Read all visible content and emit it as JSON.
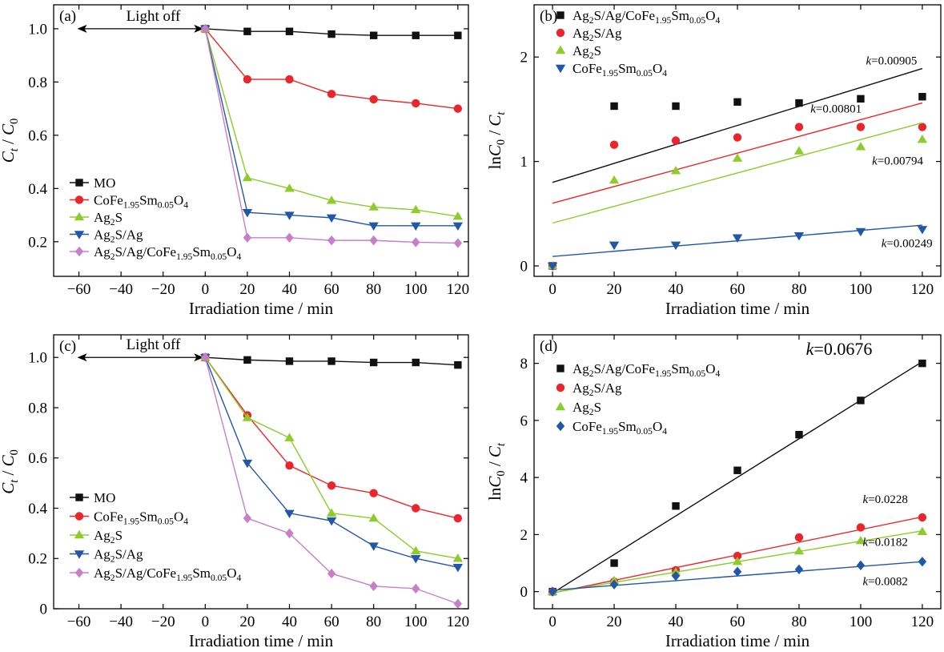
{
  "colors": {
    "black": "#111111",
    "red": "#e8262b",
    "green": "#8ecb2c",
    "blue": "#2257a8",
    "purple": "#c77fc8"
  },
  "chart_data": [
    {
      "panel_label": "(a)",
      "type": "line",
      "x": [
        0,
        20,
        40,
        60,
        80,
        100,
        120
      ],
      "xlabel": "Irradiation time / min",
      "ylabel": "Ct / C0",
      "ylabel_main": "C",
      "ylabel_sub1": "t",
      "ylabel_sep": " / C",
      "ylabel_sub2": "0",
      "xlim": [
        -72,
        125
      ],
      "ylim": [
        0.07,
        1.09
      ],
      "xticks": [
        "−60",
        "−40",
        "−20",
        "0",
        "20",
        "40",
        "60",
        "80",
        "100",
        "120"
      ],
      "yticks": [
        "0.2",
        "0.4",
        "0.6",
        "0.8",
        "1.0"
      ],
      "annotation": "Light off",
      "annotation_x_range": [
        -60,
        0
      ],
      "annotation_y": 1.0,
      "legend_position": "bottom-left",
      "series": [
        {
          "name": "MO",
          "legend": [
            "MO"
          ],
          "color": "black",
          "marker": "square",
          "values": [
            1.0,
            0.99,
            0.99,
            0.98,
            0.975,
            0.975,
            0.975
          ]
        },
        {
          "name": "CoFe1.95Sm0.05O4",
          "legend": [
            "CoFe",
            "1.95",
            "Sm",
            "0.05",
            "O",
            "4"
          ],
          "color": "red",
          "marker": "circle",
          "values": [
            1.0,
            0.81,
            0.81,
            0.755,
            0.735,
            0.72,
            0.7
          ]
        },
        {
          "name": "Ag2S",
          "legend": [
            "Ag",
            "2",
            "S"
          ],
          "color": "green",
          "marker": "triangle",
          "values": [
            1.0,
            0.44,
            0.4,
            0.355,
            0.33,
            0.32,
            0.295
          ]
        },
        {
          "name": "Ag2S/Ag",
          "legend": [
            "Ag",
            "2",
            "S/Ag"
          ],
          "color": "blue",
          "marker": "down-triangle",
          "values": [
            1.0,
            0.31,
            0.3,
            0.29,
            0.26,
            0.26,
            0.26
          ]
        },
        {
          "name": "Ag2S/Ag/CoFe1.95Sm0.05O4",
          "legend": [
            "Ag",
            "2",
            "S/Ag/CoFe",
            "1.95",
            "Sm",
            "0.05",
            "O",
            "4"
          ],
          "color": "purple",
          "marker": "diamond",
          "values": [
            1.0,
            0.215,
            0.215,
            0.205,
            0.205,
            0.198,
            0.195
          ]
        }
      ]
    },
    {
      "panel_label": "(b)",
      "type": "scatter",
      "x": [
        0,
        20,
        40,
        60,
        80,
        100,
        120
      ],
      "xlabel": "Irradiation time / min",
      "ylabel": "lnC0 / Ct",
      "ylabel_main": "lnC",
      "ylabel_sub1": "0",
      "ylabel_sep": " / C",
      "ylabel_sub2": "t",
      "xlim": [
        -6,
        126
      ],
      "ylim": [
        -0.1,
        2.5
      ],
      "xticks": [
        "0",
        "20",
        "40",
        "60",
        "80",
        "100",
        "120"
      ],
      "yticks": [
        "0",
        "1",
        "2"
      ],
      "legend_position": "top-left",
      "series": [
        {
          "name": "Ag2S/Ag/CoFe1.95Sm0.05O4",
          "legend": [
            "Ag",
            "2",
            "S/Ag/CoFe",
            "1.95",
            "Sm",
            "0.05",
            "O",
            "4"
          ],
          "color": "black",
          "marker": "square",
          "values": [
            0,
            1.53,
            1.53,
            1.57,
            1.56,
            1.6,
            1.62
          ],
          "fit": [
            0.8,
            1.89
          ],
          "k_label": "k=0.00905",
          "k_at": [
            110,
            1.93
          ]
        },
        {
          "name": "Ag2S/Ag",
          "legend": [
            "Ag",
            "2",
            "S/Ag"
          ],
          "color": "red",
          "marker": "circle",
          "values": [
            0,
            1.16,
            1.2,
            1.23,
            1.33,
            1.33,
            1.33
          ],
          "fit": [
            0.6,
            1.56
          ],
          "k_label": "k=0.00801",
          "k_at": [
            92,
            1.47
          ]
        },
        {
          "name": "Ag2S",
          "legend": [
            "Ag",
            "2",
            "S"
          ],
          "color": "green",
          "marker": "triangle",
          "values": [
            0,
            0.82,
            0.91,
            1.03,
            1.1,
            1.14,
            1.21
          ],
          "fit": [
            0.41,
            1.37
          ],
          "k_label": "k=0.00794",
          "k_at": [
            112,
            0.97
          ]
        },
        {
          "name": "CoFe1.95Sm0.05O4",
          "legend": [
            "CoFe",
            "1.95",
            "Sm",
            "0.05",
            "O",
            "4"
          ],
          "color": "blue",
          "marker": "down-triangle",
          "values": [
            0,
            0.2,
            0.2,
            0.27,
            0.29,
            0.33,
            0.35
          ],
          "fit": [
            0.09,
            0.39
          ],
          "k_label": "k=0.00249",
          "k_at": [
            115,
            0.18
          ]
        }
      ]
    },
    {
      "panel_label": "(c)",
      "type": "line",
      "x": [
        0,
        20,
        40,
        60,
        80,
        100,
        120
      ],
      "xlabel": "Irradiation time / min",
      "ylabel": "Ct / C0",
      "ylabel_main": "C",
      "ylabel_sub1": "t",
      "ylabel_sep": " / C",
      "ylabel_sub2": "0",
      "xlim": [
        -72,
        125
      ],
      "ylim": [
        0.0,
        1.09
      ],
      "xticks": [
        "−60",
        "−40",
        "−20",
        "0",
        "20",
        "40",
        "60",
        "80",
        "100",
        "120"
      ],
      "yticks": [
        "0",
        "0.2",
        "0.4",
        "0.6",
        "0.8",
        "1.0"
      ],
      "annotation": "Light off",
      "annotation_x_range": [
        -60,
        0
      ],
      "annotation_y": 1.0,
      "legend_position": "bottom-left",
      "series": [
        {
          "name": "MO",
          "legend": [
            "MO"
          ],
          "color": "black",
          "marker": "square",
          "values": [
            1.0,
            0.99,
            0.985,
            0.985,
            0.98,
            0.98,
            0.97
          ]
        },
        {
          "name": "CoFe1.95Sm0.05O4",
          "legend": [
            "CoFe",
            "1.95",
            "Sm",
            "0.05",
            "O",
            "4"
          ],
          "color": "red",
          "marker": "circle",
          "values": [
            1.0,
            0.77,
            0.57,
            0.49,
            0.46,
            0.4,
            0.36
          ]
        },
        {
          "name": "Ag2S",
          "legend": [
            "Ag",
            "2",
            "S"
          ],
          "color": "green",
          "marker": "triangle",
          "values": [
            1.0,
            0.76,
            0.68,
            0.38,
            0.36,
            0.23,
            0.2
          ]
        },
        {
          "name": "Ag2S/Ag",
          "legend": [
            "Ag",
            "2",
            "S/Ag"
          ],
          "color": "blue",
          "marker": "down-triangle",
          "values": [
            1.0,
            0.58,
            0.38,
            0.35,
            0.25,
            0.2,
            0.165
          ]
        },
        {
          "name": "Ag2S/Ag/CoFe1.95Sm0.05O4",
          "legend": [
            "Ag",
            "2",
            "S/Ag/CoFe",
            "1.95",
            "Sm",
            "0.05",
            "O",
            "4"
          ],
          "color": "purple",
          "marker": "diamond",
          "values": [
            1.0,
            0.36,
            0.3,
            0.14,
            0.09,
            0.08,
            0.02
          ]
        }
      ]
    },
    {
      "panel_label": "(d)",
      "type": "scatter",
      "x": [
        0,
        20,
        40,
        60,
        80,
        100,
        120
      ],
      "xlabel": "Irradiation time / min",
      "ylabel": "lnC0 / Ct",
      "ylabel_main": "lnC",
      "ylabel_sub1": "0",
      "ylabel_sep": " / C",
      "ylabel_sub2": "t",
      "xlim": [
        -6,
        126
      ],
      "ylim": [
        -0.6,
        9.0
      ],
      "xticks": [
        "0",
        "20",
        "40",
        "60",
        "80",
        "100",
        "120"
      ],
      "yticks": [
        "0",
        "2",
        "4",
        "6",
        "8"
      ],
      "legend_position": "top-left",
      "series": [
        {
          "name": "Ag2S/Ag/CoFe1.95Sm0.05O4",
          "legend": [
            "Ag",
            "2",
            "S/Ag/CoFe",
            "1.95",
            "Sm",
            "0.05",
            "O",
            "4"
          ],
          "color": "black",
          "marker": "square",
          "values": [
            0,
            1.0,
            3.0,
            4.25,
            5.5,
            6.7,
            8.0
          ],
          "fit": [
            -0.05,
            8.06
          ],
          "k_label": "k=0.0676",
          "k_at": [
            93,
            8.3
          ],
          "k_big": true
        },
        {
          "name": "Ag2S/Ag",
          "legend": [
            "Ag",
            "2",
            "S/Ag"
          ],
          "color": "red",
          "marker": "circle",
          "values": [
            0,
            0.35,
            0.75,
            1.25,
            1.9,
            2.25,
            2.6
          ],
          "fit": [
            -0.05,
            2.62
          ],
          "k_label": "k=0.0228",
          "k_at": [
            108,
            3.1
          ]
        },
        {
          "name": "Ag2S",
          "legend": [
            "Ag",
            "2",
            "S"
          ],
          "color": "green",
          "marker": "triangle",
          "values": [
            0,
            0.38,
            0.68,
            1.05,
            1.42,
            1.78,
            2.1
          ],
          "fit": [
            -0.04,
            2.13
          ],
          "k_label": "k=0.0182",
          "k_at": [
            108,
            1.6
          ]
        },
        {
          "name": "CoFe1.95Sm0.05O4",
          "legend": [
            "CoFe",
            "1.95",
            "Sm",
            "0.05",
            "O",
            "4"
          ],
          "color": "blue",
          "marker": "diamond",
          "values": [
            0,
            0.25,
            0.55,
            0.7,
            0.78,
            0.92,
            1.05
          ],
          "fit": [
            0.05,
            1.05
          ],
          "k_label": "k=0.0082",
          "k_at": [
            108,
            0.23
          ]
        }
      ]
    }
  ]
}
